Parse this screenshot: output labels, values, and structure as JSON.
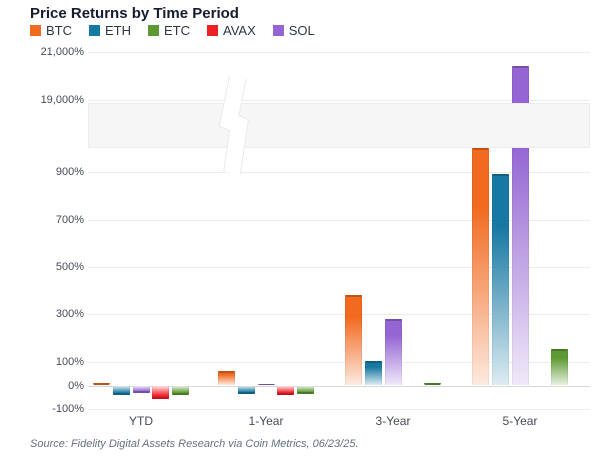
{
  "title": "Price Returns by Time Period",
  "legend": [
    {
      "label": "BTC",
      "color": "#f26a1f"
    },
    {
      "label": "ETH",
      "color": "#1678a3"
    },
    {
      "label": "ETC",
      "color": "#5d9a33"
    },
    {
      "label": "AVAX",
      "color": "#ee1f25"
    },
    {
      "label": "SOL",
      "color": "#9465d3"
    }
  ],
  "source": "Source: Fidelity Digital Assets Research via Coin Metrics, 06/23/25.",
  "chart_data": {
    "type": "bar",
    "title": "Price Returns by Time Period",
    "categories": [
      "YTD",
      "1-Year",
      "3-Year",
      "5-Year"
    ],
    "series": [
      {
        "name": "BTC",
        "color": "#f26a1f",
        "values": [
          10,
          60,
          380,
          1000
        ]
      },
      {
        "name": "ETH",
        "color": "#1678a3",
        "values": [
          -40,
          -35,
          105,
          890
        ]
      },
      {
        "name": "SOL",
        "color": "#9465d3",
        "values": [
          -30,
          5,
          280,
          20400
        ]
      },
      {
        "name": "AVAX",
        "color": "#ee1f25",
        "values": [
          -55,
          -40,
          0,
          null
        ]
      },
      {
        "name": "ETC",
        "color": "#5d9a33",
        "values": [
          -40,
          -35,
          10,
          155
        ]
      }
    ],
    "series_note": "series array is in bar slot order within each group; legend display order is BTC, ETH, ETC, AVAX, SOL",
    "xlabel": "",
    "ylabel": "",
    "unit": "%",
    "y_ticks": [
      {
        "value": 21000,
        "label": "21,000%"
      },
      {
        "value": 19000,
        "label": "19,000%"
      },
      {
        "value": 900,
        "label": "900%"
      },
      {
        "value": 700,
        "label": "700%"
      },
      {
        "value": 500,
        "label": "500%"
      },
      {
        "value": 300,
        "label": "300%"
      },
      {
        "value": 100,
        "label": "100%"
      },
      {
        "value": 0,
        "label": "0%"
      },
      {
        "value": -100,
        "label": "-100%"
      }
    ],
    "ylim": [
      -100,
      21000
    ],
    "axis_break": {
      "from": 1000,
      "to": 19000
    },
    "grid": true,
    "legend_position": "top-left",
    "gradient_bars": true
  }
}
